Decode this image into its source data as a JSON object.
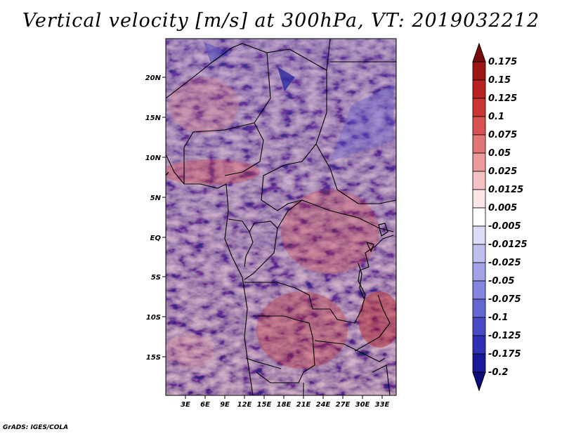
{
  "title": "Vertical velocity [m/s] at 300hPa, VT: 2019032212",
  "lat_labels": [
    "20N",
    "15N",
    "10N",
    "5N",
    "EQ",
    "5S",
    "10S",
    "15S"
  ],
  "lon_labels": [
    "3E",
    "6E",
    "9E",
    "12E",
    "15E",
    "18E",
    "21E",
    "24E",
    "27E",
    "30E",
    "33E"
  ],
  "colorbar": {
    "labels": [
      "0.175",
      "0.15",
      "0.125",
      "0.1",
      "0.075",
      "0.05",
      "0.025",
      "0.0125",
      "0.005",
      "-0.005",
      "-0.0125",
      "-0.025",
      "-0.05",
      "-0.075",
      "-0.1",
      "-0.125",
      "-0.175",
      "-0.2"
    ],
    "colors": [
      "#7a0a0a",
      "#9e1515",
      "#b82222",
      "#cc3535",
      "#d85252",
      "#e27575",
      "#ec9a9a",
      "#f4c2c2",
      "#fbe6e6",
      "#ffffff",
      "#dcdcf7",
      "#bfbff0",
      "#a3a3e8",
      "#8585df",
      "#6767d4",
      "#4a4ac6",
      "#3030b4",
      "#1a1a99",
      "#0c0c7a"
    ]
  },
  "credit": "GrADS: IGES/COLA"
}
